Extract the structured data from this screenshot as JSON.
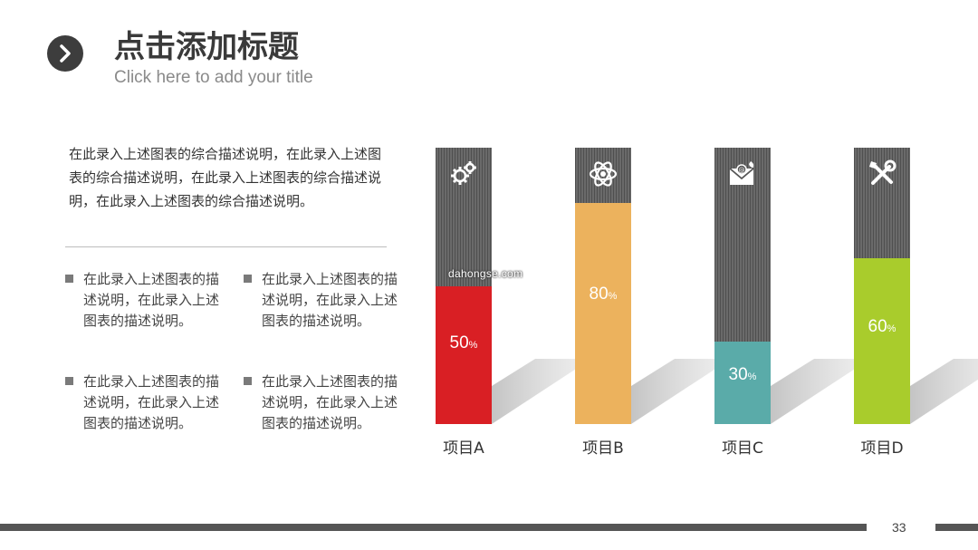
{
  "header": {
    "title": "点击添加标题",
    "subtitle": "Click here to add your title"
  },
  "intro": "在此录入上述图表的综合描述说明，在此录入上述图表的综合描述说明，在此录入上述图表的综合描述说明，在此录入上述图表的综合描述说明。",
  "bullets": [
    "在此录入上述图表的描述说明，在此录入上述图表的描述说明。",
    "在此录入上述图表的描述说明，在此录入上述图表的描述说明。",
    "在此录入上述图表的描述说明，在此录入上述图表的描述说明。",
    "在此录入上述图表的描述说明，在此录入上述图表的描述说明。"
  ],
  "watermark": "dahongse.com",
  "page_number": "33",
  "colors": {
    "dark": "#555555",
    "bar_a": "#d91f24",
    "bar_b": "#ecb25d",
    "bar_c": "#5aaba9",
    "bar_d": "#a9cc2c"
  },
  "chart_data": {
    "type": "bar",
    "categories": [
      "项目A",
      "项目B",
      "项目C",
      "项目D"
    ],
    "values": [
      50,
      80,
      30,
      60
    ],
    "value_suffix": "%",
    "ylim": [
      0,
      100
    ],
    "icons": [
      "gears-icon",
      "atom-icon",
      "email-icon",
      "tools-icon"
    ],
    "colors": [
      "#d91f24",
      "#ecb25d",
      "#5aaba9",
      "#a9cc2c"
    ]
  }
}
